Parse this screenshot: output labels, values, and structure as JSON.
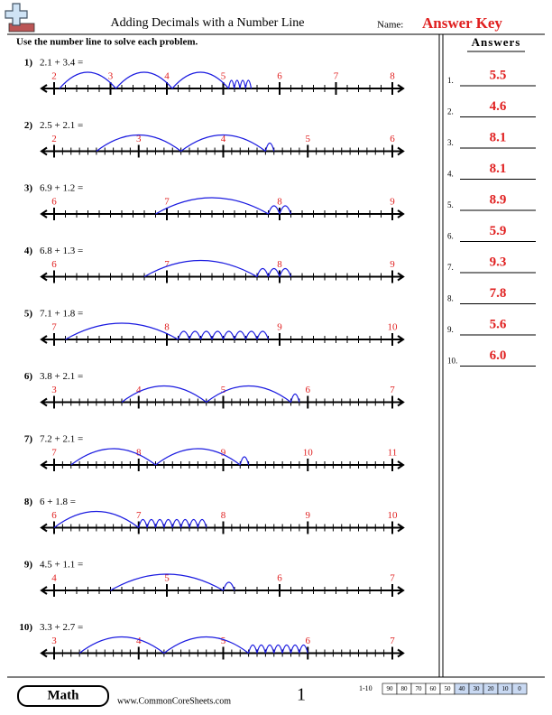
{
  "header": {
    "title": "Adding Decimals with a Number Line",
    "name_label": "Name:",
    "answer_key": "Answer Key"
  },
  "instructions": "Use the number line to solve each problem.",
  "problems": [
    {
      "number": "1)",
      "expression": "2.1 + 3.4 =",
      "labels": [
        2,
        3,
        4,
        5,
        6,
        7,
        8
      ]
    },
    {
      "number": "2)",
      "expression": "2.5 + 2.1 =",
      "labels": [
        2,
        3,
        4,
        5,
        6
      ]
    },
    {
      "number": "3)",
      "expression": "6.9 + 1.2 =",
      "labels": [
        6,
        7,
        8,
        9
      ]
    },
    {
      "number": "4)",
      "expression": "6.8 + 1.3 =",
      "labels": [
        6,
        7,
        8,
        9
      ]
    },
    {
      "number": "5)",
      "expression": "7.1 + 1.8 =",
      "labels": [
        7,
        8,
        9,
        10
      ]
    },
    {
      "number": "6)",
      "expression": "3.8 + 2.1 =",
      "labels": [
        3,
        4,
        5,
        6,
        7
      ]
    },
    {
      "number": "7)",
      "expression": "7.2 + 2.1 =",
      "labels": [
        7,
        8,
        9,
        10,
        11
      ]
    },
    {
      "number": "8)",
      "expression": "6 + 1.8 =",
      "labels": [
        6,
        7,
        8,
        9,
        10
      ]
    },
    {
      "number": "9)",
      "expression": "4.5 + 1.1 =",
      "labels": [
        4,
        5,
        6,
        7
      ]
    },
    {
      "number": "10)",
      "expression": "3.3 + 2.7 =",
      "labels": [
        3,
        4,
        5,
        6,
        7
      ]
    }
  ],
  "answers": {
    "title": "Answers",
    "items": [
      {
        "number": "1.",
        "answer": "5.5"
      },
      {
        "number": "2.",
        "answer": "4.6"
      },
      {
        "number": "3.",
        "answer": "8.1"
      },
      {
        "number": "4.",
        "answer": "8.1"
      },
      {
        "number": "5.",
        "answer": "8.9"
      },
      {
        "number": "6.",
        "answer": "5.9"
      },
      {
        "number": "7.",
        "answer": "9.3"
      },
      {
        "number": "8.",
        "answer": "7.8"
      },
      {
        "number": "9.",
        "answer": "5.6"
      },
      {
        "number": "10.",
        "answer": "6.0"
      }
    ]
  },
  "footer": {
    "subject": "Math",
    "website": "www.CommonCoreSheets.com",
    "page": "1",
    "score_range": "1-10",
    "scores": [
      90,
      80,
      70,
      60,
      50,
      40,
      30,
      20,
      10,
      0
    ]
  }
}
